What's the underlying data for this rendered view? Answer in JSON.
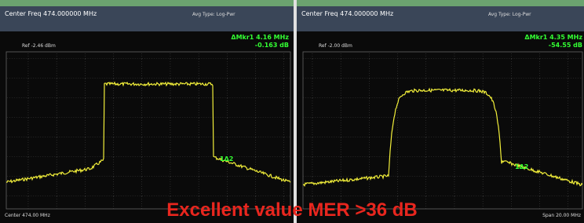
{
  "panels": [
    {
      "center_freq": "Center Freq 474.000000 MHz",
      "avg_type": "Avg Type: Log-Pwr",
      "ref": "Ref -2.46 dBm",
      "marker": "ΔMkr1 4.16 MHz",
      "marker_value": "-0.163 dB",
      "marker_label": "1Δ2",
      "footer": "Center 474.00 MHz"
    },
    {
      "center_freq": "Center Freq 474.000000 MHz",
      "avg_type": "Avg Type: Log-Pwr",
      "ref": "Ref -2.00 dBm",
      "marker": "ΔMkr1 4.35 MHz",
      "marker_value": "-54.55 dB",
      "marker_label": "1Δ2",
      "footer": "Span 20.00 MHz"
    }
  ],
  "overlay": "Excellent value MER >36 dB"
}
